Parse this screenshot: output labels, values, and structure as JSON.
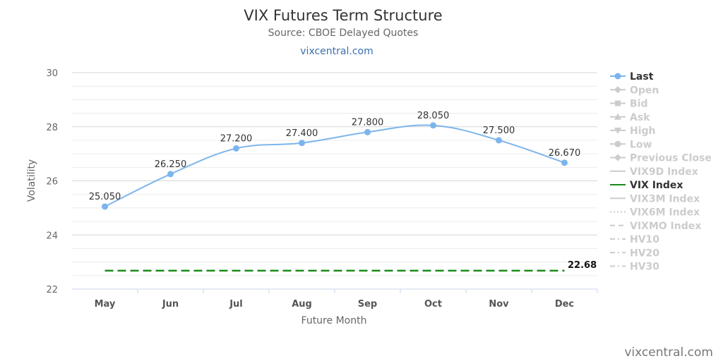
{
  "title": "VIX Futures Term Structure",
  "subtitle": "Source: CBOE Delayed Quotes",
  "link": "vixcentral.com",
  "credit": "vixcentral.com",
  "chart_data": {
    "type": "line",
    "categories": [
      "May",
      "Jun",
      "Jul",
      "Aug",
      "Sep",
      "Oct",
      "Nov",
      "Dec"
    ],
    "xlabel": "Future Month",
    "ylabel": "Volatility",
    "ylim": [
      22,
      30
    ],
    "yticks": [
      22,
      24,
      26,
      28,
      30
    ],
    "grid": true,
    "legend_position": "right",
    "series": [
      {
        "name": "Last",
        "values": [
          25.05,
          26.25,
          27.2,
          27.4,
          27.8,
          28.05,
          27.5,
          26.67
        ],
        "labels": [
          "25.050",
          "26.250",
          "27.200",
          "27.400",
          "27.800",
          "28.050",
          "27.500",
          "26.670"
        ],
        "color": "#7cb5ec",
        "style": "smooth-line-markers"
      },
      {
        "name": "VIX Index",
        "value": 22.68,
        "label": "22.68",
        "color": "#1a8a1a",
        "style": "dashed"
      }
    ]
  },
  "legend": [
    {
      "name": "Last",
      "active": true,
      "symbol": "circle",
      "color": "#7cb5ec"
    },
    {
      "name": "Open",
      "active": false,
      "symbol": "diamond",
      "color": "#cccccc"
    },
    {
      "name": "Bid",
      "active": false,
      "symbol": "square",
      "color": "#cccccc"
    },
    {
      "name": "Ask",
      "active": false,
      "symbol": "triangle",
      "color": "#cccccc"
    },
    {
      "name": "High",
      "active": false,
      "symbol": "triangle-down",
      "color": "#cccccc"
    },
    {
      "name": "Low",
      "active": false,
      "symbol": "circle",
      "color": "#cccccc"
    },
    {
      "name": "Previous Close",
      "active": false,
      "symbol": "diamond",
      "color": "#cccccc"
    },
    {
      "name": "VIX9D Index",
      "active": false,
      "symbol": "solid",
      "color": "#cccccc"
    },
    {
      "name": "VIX Index",
      "active": true,
      "symbol": "solid",
      "color": "#1a8a1a"
    },
    {
      "name": "VIX3M Index",
      "active": false,
      "symbol": "solid",
      "color": "#cccccc"
    },
    {
      "name": "VIX6M Index",
      "active": false,
      "symbol": "dotted",
      "color": "#cccccc"
    },
    {
      "name": "VIXMO Index",
      "active": false,
      "symbol": "dash",
      "color": "#cccccc"
    },
    {
      "name": "HV10",
      "active": false,
      "symbol": "dashdot",
      "color": "#cccccc"
    },
    {
      "name": "HV20",
      "active": false,
      "symbol": "dashdot",
      "color": "#cccccc"
    },
    {
      "name": "HV30",
      "active": false,
      "symbol": "dashdot",
      "color": "#cccccc"
    }
  ]
}
